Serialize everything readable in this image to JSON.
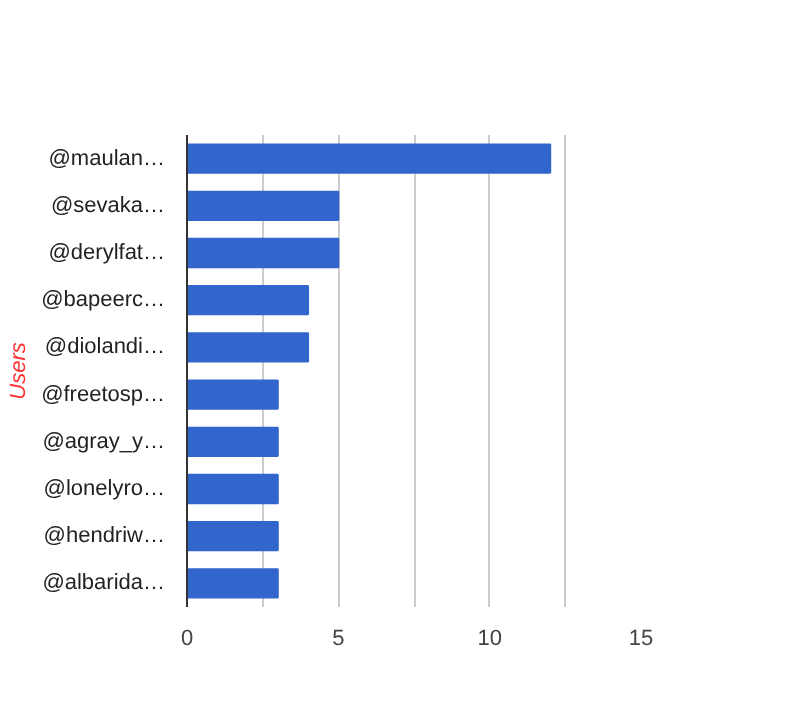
{
  "chart_data": {
    "type": "bar",
    "orientation": "horizontal",
    "ylabel": "Users",
    "categories": [
      "@maulan…",
      "@sevaka…",
      "@derylfat…",
      "@bapeerc…",
      "@diolandi…",
      "@freetosp…",
      "@agray_y…",
      "@lonelyro…",
      "@hendriw…",
      "@albarida…"
    ],
    "values": [
      12,
      5,
      5,
      4,
      4,
      3,
      3,
      3,
      3,
      3
    ],
    "color": "#3366cc",
    "xlim": [
      0,
      15
    ],
    "xticks": [
      0,
      {
        "value": 2.5,
        "label": null
      },
      5,
      {
        "value": 7.5,
        "label": null
      },
      10,
      {
        "value": 12.5,
        "label": null
      },
      15
    ],
    "grid": "x"
  }
}
